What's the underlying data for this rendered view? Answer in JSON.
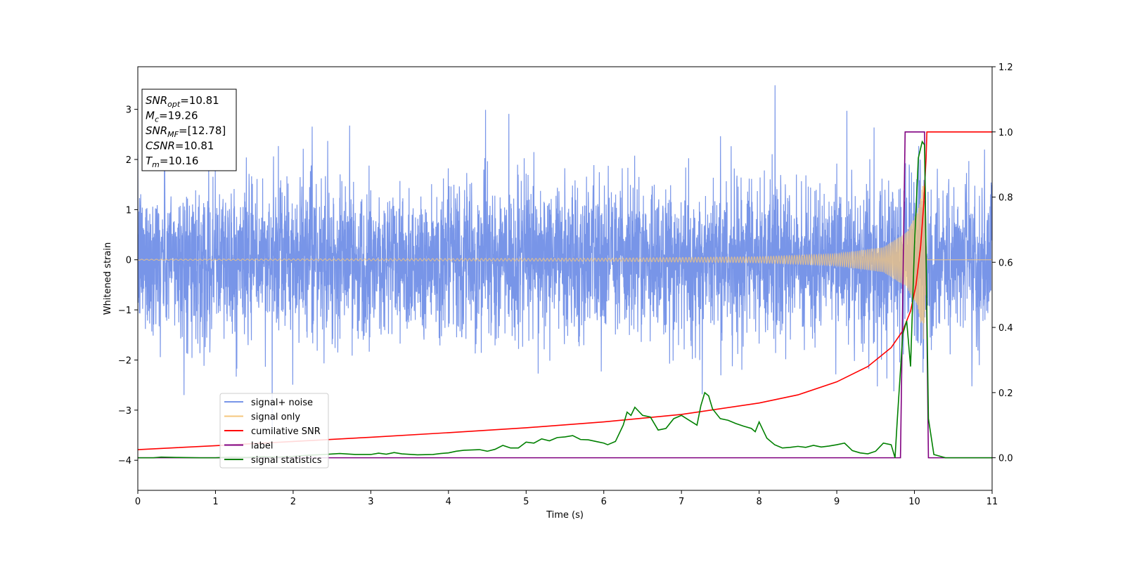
{
  "chart_data": {
    "type": "line",
    "title": "",
    "xlabel": "Time (s)",
    "ylabel": "Whitened strain",
    "xlim": [
      0,
      11
    ],
    "ylim_left": [
      -4.6,
      3.85
    ],
    "ylim_right": [
      -0.1,
      1.2
    ],
    "x_ticks": [
      0,
      1,
      2,
      3,
      4,
      5,
      6,
      7,
      8,
      9,
      10,
      11
    ],
    "y_ticks_left": [
      -4,
      -3,
      -2,
      -1,
      0,
      1,
      2,
      3
    ],
    "y_ticks_right": [
      0.0,
      0.2,
      0.4,
      0.6,
      0.8,
      1.0,
      1.2
    ],
    "grid": false,
    "legend_placement": "lower-left",
    "annotation": {
      "lines": [
        {
          "base": "SNR",
          "sub": "opt",
          "value": "=10.81"
        },
        {
          "base": "M",
          "sub": "c",
          "value": "=19.26"
        },
        {
          "base": "SNR",
          "sub": "MF",
          "value": "=[12.78]"
        },
        {
          "base": "CSNR",
          "sub": "",
          "value": "=10.81"
        },
        {
          "base": "T",
          "sub": "m",
          "value": "=10.16"
        }
      ]
    },
    "series": [
      {
        "name": "signal+ noise",
        "axis": "left",
        "color": "#7895e8",
        "noise_std": 1.05,
        "peak_max": 3.48,
        "peak_min": -4.15
      },
      {
        "name": "signal only",
        "axis": "left",
        "color": "#f5c77e",
        "amplitude_env": [
          [
            0,
            0.01
          ],
          [
            6,
            0.03
          ],
          [
            8,
            0.06
          ],
          [
            9,
            0.12
          ],
          [
            9.6,
            0.25
          ],
          [
            9.9,
            0.55
          ],
          [
            10.05,
            1.0
          ],
          [
            10.12,
            1.6
          ],
          [
            10.16,
            0.0
          ],
          [
            11,
            0.0
          ]
        ]
      },
      {
        "name": "cumilative SNR",
        "axis": "right",
        "color": "#ff0000",
        "points": [
          [
            0,
            0.025
          ],
          [
            1,
            0.037
          ],
          [
            2,
            0.05
          ],
          [
            3,
            0.063
          ],
          [
            4,
            0.077
          ],
          [
            5,
            0.092
          ],
          [
            6,
            0.11
          ],
          [
            7,
            0.133
          ],
          [
            8,
            0.168
          ],
          [
            8.5,
            0.193
          ],
          [
            9,
            0.233
          ],
          [
            9.4,
            0.28
          ],
          [
            9.7,
            0.338
          ],
          [
            9.85,
            0.39
          ],
          [
            9.95,
            0.45
          ],
          [
            10.02,
            0.53
          ],
          [
            10.08,
            0.65
          ],
          [
            10.12,
            0.78
          ],
          [
            10.15,
            0.92
          ],
          [
            10.16,
            1.0
          ],
          [
            11,
            1.0
          ]
        ]
      },
      {
        "name": "label",
        "axis": "right",
        "color": "#800080",
        "points": [
          [
            0,
            0.0
          ],
          [
            9.82,
            0.0
          ],
          [
            9.88,
            1.0
          ],
          [
            10.13,
            1.0
          ],
          [
            10.18,
            0.0
          ],
          [
            11,
            0.0
          ]
        ]
      },
      {
        "name": "signal statistics",
        "axis": "right",
        "color": "#008000",
        "points": [
          [
            0,
            0.0
          ],
          [
            0.2,
            0.0
          ],
          [
            0.3,
            0.002
          ],
          [
            0.5,
            0.001
          ],
          [
            0.8,
            0.0
          ],
          [
            1.0,
            0.0
          ],
          [
            1.2,
            0.002
          ],
          [
            1.4,
            0.001
          ],
          [
            1.6,
            0.003
          ],
          [
            1.8,
            0.002
          ],
          [
            2.0,
            0.004
          ],
          [
            2.2,
            0.008
          ],
          [
            2.4,
            0.01
          ],
          [
            2.6,
            0.013
          ],
          [
            2.8,
            0.01
          ],
          [
            3.0,
            0.01
          ],
          [
            3.1,
            0.014
          ],
          [
            3.2,
            0.011
          ],
          [
            3.3,
            0.016
          ],
          [
            3.4,
            0.012
          ],
          [
            3.6,
            0.009
          ],
          [
            3.8,
            0.01
          ],
          [
            3.9,
            0.013
          ],
          [
            4.0,
            0.015
          ],
          [
            4.1,
            0.02
          ],
          [
            4.2,
            0.023
          ],
          [
            4.4,
            0.025
          ],
          [
            4.5,
            0.02
          ],
          [
            4.6,
            0.026
          ],
          [
            4.7,
            0.038
          ],
          [
            4.8,
            0.03
          ],
          [
            4.9,
            0.03
          ],
          [
            5.0,
            0.048
          ],
          [
            5.1,
            0.045
          ],
          [
            5.2,
            0.058
          ],
          [
            5.3,
            0.052
          ],
          [
            5.4,
            0.062
          ],
          [
            5.5,
            0.064
          ],
          [
            5.6,
            0.068
          ],
          [
            5.7,
            0.056
          ],
          [
            5.8,
            0.055
          ],
          [
            5.9,
            0.05
          ],
          [
            6.0,
            0.045
          ],
          [
            6.05,
            0.04
          ],
          [
            6.15,
            0.05
          ],
          [
            6.25,
            0.1
          ],
          [
            6.3,
            0.14
          ],
          [
            6.35,
            0.13
          ],
          [
            6.4,
            0.155
          ],
          [
            6.5,
            0.13
          ],
          [
            6.6,
            0.125
          ],
          [
            6.7,
            0.085
          ],
          [
            6.8,
            0.09
          ],
          [
            6.9,
            0.12
          ],
          [
            7.0,
            0.13
          ],
          [
            7.1,
            0.115
          ],
          [
            7.2,
            0.1
          ],
          [
            7.25,
            0.16
          ],
          [
            7.3,
            0.2
          ],
          [
            7.35,
            0.19
          ],
          [
            7.4,
            0.15
          ],
          [
            7.5,
            0.12
          ],
          [
            7.6,
            0.115
          ],
          [
            7.7,
            0.105
          ],
          [
            7.8,
            0.097
          ],
          [
            7.9,
            0.09
          ],
          [
            7.95,
            0.08
          ],
          [
            8.0,
            0.11
          ],
          [
            8.05,
            0.085
          ],
          [
            8.1,
            0.06
          ],
          [
            8.2,
            0.04
          ],
          [
            8.3,
            0.03
          ],
          [
            8.4,
            0.032
          ],
          [
            8.5,
            0.035
          ],
          [
            8.6,
            0.032
          ],
          [
            8.7,
            0.038
          ],
          [
            8.8,
            0.033
          ],
          [
            8.9,
            0.036
          ],
          [
            9.0,
            0.04
          ],
          [
            9.1,
            0.045
          ],
          [
            9.2,
            0.022
          ],
          [
            9.3,
            0.015
          ],
          [
            9.4,
            0.012
          ],
          [
            9.5,
            0.02
          ],
          [
            9.6,
            0.045
          ],
          [
            9.7,
            0.04
          ],
          [
            9.75,
            0.0
          ],
          [
            9.78,
            0.12
          ],
          [
            9.85,
            0.38
          ],
          [
            9.9,
            0.42
          ],
          [
            9.95,
            0.28
          ],
          [
            10.0,
            0.65
          ],
          [
            10.05,
            0.92
          ],
          [
            10.1,
            0.97
          ],
          [
            10.13,
            0.96
          ],
          [
            10.18,
            0.12
          ],
          [
            10.25,
            0.01
          ],
          [
            10.4,
            0.0
          ],
          [
            11,
            0.0
          ]
        ]
      }
    ]
  }
}
